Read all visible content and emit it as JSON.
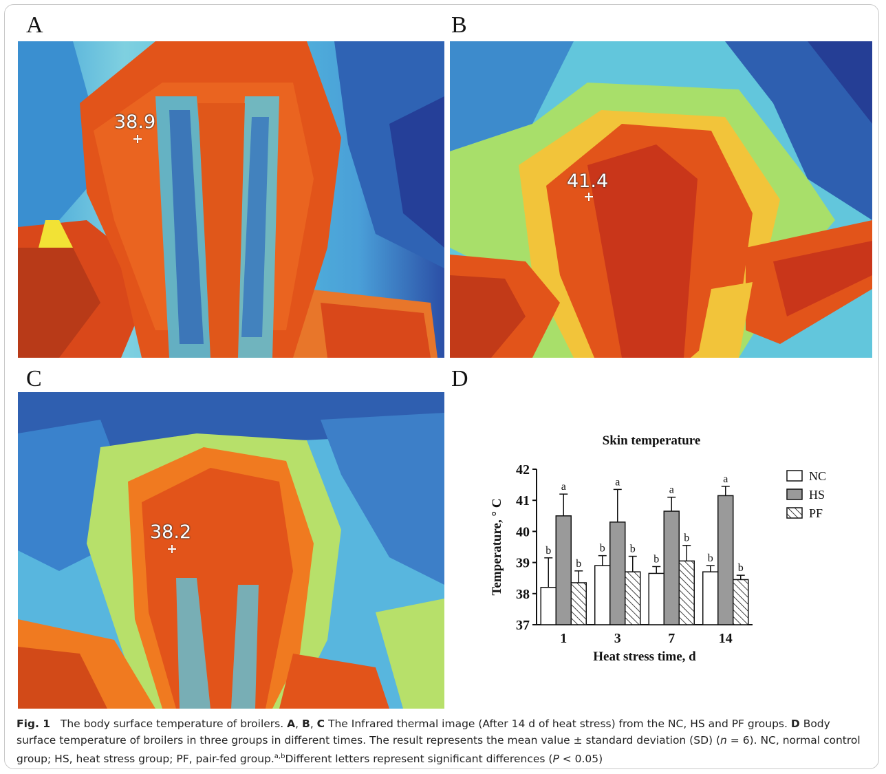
{
  "panels": {
    "a": {
      "letter": "A",
      "readout": "38.9"
    },
    "b": {
      "letter": "B",
      "readout": "41.4"
    },
    "c": {
      "letter": "C",
      "readout": "38.2"
    },
    "d": {
      "letter": "D"
    }
  },
  "colors": {
    "thermal_hot": "#d9480f",
    "thermal_warm": "#f07a1a",
    "thermal_mid": "#e8e337",
    "thermal_cool": "#45b7d6",
    "thermal_cold": "#2451a6",
    "hs_bar": "#9a9a9a"
  },
  "chart_data": {
    "type": "bar",
    "title": "Skin temperature",
    "xlabel": "Heat stress time, d",
    "ylabel": "Temperature, ° C",
    "categories": [
      "1",
      "3",
      "7",
      "14"
    ],
    "ylim": [
      37,
      42
    ],
    "yticks": [
      "37",
      "38",
      "39",
      "40",
      "41",
      "42"
    ],
    "legend_position": "right",
    "series": [
      {
        "name": "NC",
        "values": [
          38.2,
          38.9,
          38.65,
          38.7
        ],
        "sd": [
          0.95,
          0.32,
          0.22,
          0.2
        ],
        "letters": [
          "b",
          "b",
          "b",
          "b"
        ],
        "fill": "white"
      },
      {
        "name": "HS",
        "values": [
          40.5,
          40.3,
          40.65,
          41.15
        ],
        "sd": [
          0.7,
          1.05,
          0.45,
          0.3
        ],
        "letters": [
          "a",
          "a",
          "a",
          "a"
        ],
        "fill": "gray"
      },
      {
        "name": "PF",
        "values": [
          38.35,
          38.7,
          39.05,
          38.45
        ],
        "sd": [
          0.38,
          0.5,
          0.5,
          0.14
        ],
        "letters": [
          "b",
          "b",
          "b",
          "b"
        ],
        "fill": "hatched"
      }
    ]
  },
  "caption": {
    "fig_label": "Fig. 1",
    "intro": "The body surface temperature of broilers.",
    "abc_a": "A",
    "abc_b": "B",
    "abc_c": "C",
    "abc_text": "The Infrared thermal image (After 14 d of heat stress) from the NC, HS and PF groups.",
    "d_label": "D",
    "d_text_1": "Body surface temperature of broilers in three groups in different times. The result represents the mean value ± standard deviation (SD) (",
    "n_italic": "n",
    "d_text_2": " = 6). NC, normal control group; HS, heat stress group; PF, pair-fed group.",
    "sup": "a,b",
    "d_text_3": "Different letters represent significant differences (",
    "p_italic": "P",
    "d_text_4": " < 0.05)"
  }
}
